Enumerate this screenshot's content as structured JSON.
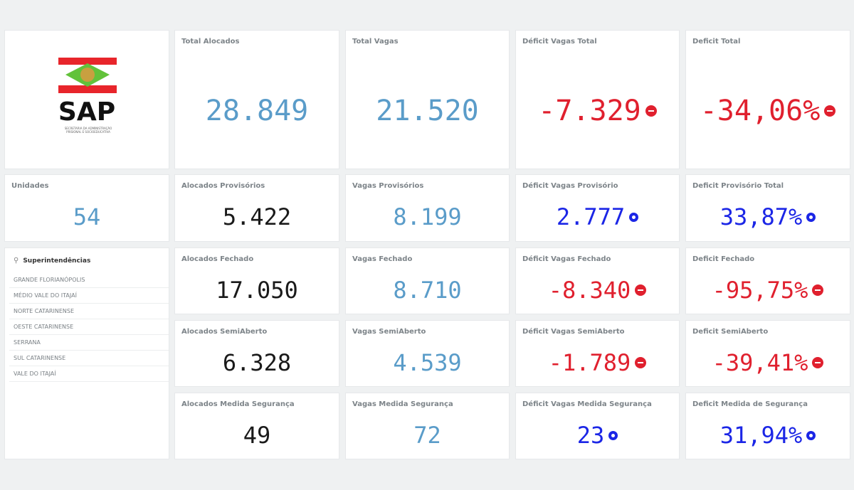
{
  "logo": {
    "text": "SAP",
    "subtitle": "SECRETARIA DA ADMINISTRAÇÃO PRISIONAL E SOCIOEDUCATIVA"
  },
  "unidades": {
    "title": "Unidades",
    "value": "54"
  },
  "filter": {
    "title": "Superintendências",
    "items": [
      "GRANDE FLORIANÓPOLIS",
      "MÉDIO VALE DO ITAJAÍ",
      "NORTE CATARINENSE",
      "OESTE CATARINENSE",
      "SERRANA",
      "SUL CATARINENSE",
      "VALE DO ITAJAÍ"
    ]
  },
  "kpis": [
    [
      {
        "title": "Total Alocados",
        "value": "28.849"
      },
      {
        "title": "Total Vagas",
        "value": "21.520"
      },
      {
        "title": "Déficit Vagas Total",
        "value": "-7.329",
        "indicator": "negative"
      },
      {
        "title": "Deficit Total",
        "value": "-34,06%",
        "indicator": "negative"
      }
    ],
    [
      {
        "title": "Alocados Provisórios",
        "value": "5.422"
      },
      {
        "title": "Vagas Provisórios",
        "value": "8.199"
      },
      {
        "title": "Déficit Vagas Provisório",
        "value": "2.777",
        "indicator": "positive"
      },
      {
        "title": "Deficit Provisório Total",
        "value": "33,87%",
        "indicator": "positive"
      }
    ],
    [
      {
        "title": "Alocados Fechado",
        "value": "17.050"
      },
      {
        "title": "Vagas Fechado",
        "value": "8.710"
      },
      {
        "title": "Déficit Vagas Fechado",
        "value": "-8.340",
        "indicator": "negative"
      },
      {
        "title": "Deficit Fechado",
        "value": "-95,75%",
        "indicator": "negative"
      }
    ],
    [
      {
        "title": "Alocados SemiAberto",
        "value": "6.328"
      },
      {
        "title": "Vagas SemiAberto",
        "value": "4.539"
      },
      {
        "title": "Déficit Vagas SemiAberto",
        "value": "-1.789",
        "indicator": "negative"
      },
      {
        "title": "Deficit SemiAberto",
        "value": "-39,41%",
        "indicator": "negative"
      }
    ],
    [
      {
        "title": "Alocados Medida Segurança",
        "value": "49"
      },
      {
        "title": "Vagas Medida Segurança",
        "value": "72"
      },
      {
        "title": "Déficit Vagas Medida Segurança",
        "value": "23",
        "indicator": "positive"
      },
      {
        "title": "Deficit Medida de Segurança",
        "value": "31,94%",
        "indicator": "positive"
      }
    ]
  ],
  "colors": {
    "light_blue": "#5a9cc9",
    "black": "#1a1a1a",
    "red": "#e0202e",
    "blue": "#1b26e6"
  }
}
